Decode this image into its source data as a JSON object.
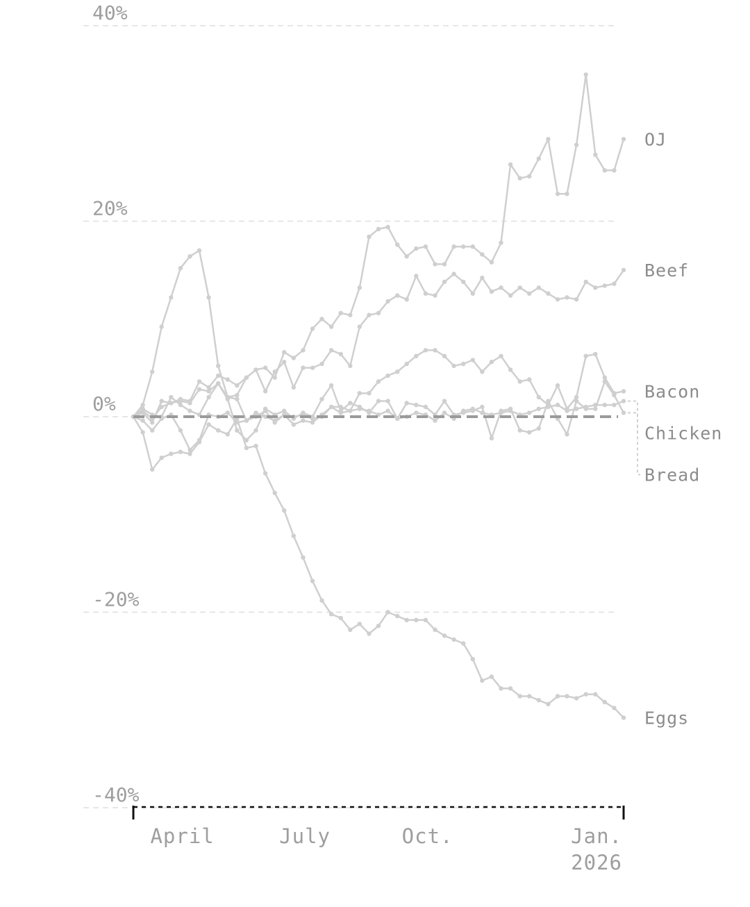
{
  "chart_data": {
    "type": "line",
    "ylim": [
      -40,
      40
    ],
    "y_ticks": [
      {
        "value": 40,
        "label": "40%"
      },
      {
        "value": 20,
        "label": "20%"
      },
      {
        "value": 0,
        "label": "0%"
      },
      {
        "value": -20,
        "label": "-20%"
      },
      {
        "value": -40,
        "label": "-40%"
      }
    ],
    "x_ticks": [
      {
        "value": 5.2,
        "label": "April"
      },
      {
        "value": 18.2,
        "label": "July"
      },
      {
        "value": 31.2,
        "label": "Oct."
      },
      {
        "value": 44.8,
        "label": "Jan.",
        "label2": "2026"
      }
    ],
    "x_count": 53,
    "grid": true,
    "zero_line": true,
    "series": [
      {
        "name": "OJ",
        "values": [
          0,
          1.2,
          4.6,
          9.2,
          12.2,
          15.2,
          16.4,
          17.0,
          12.2,
          5.2,
          2.0,
          2.2,
          4.0,
          4.8,
          5.0,
          4.0,
          6.6,
          6.0,
          6.8,
          9.0,
          10.0,
          9.2,
          10.6,
          10.4,
          13.2,
          18.4,
          19.2,
          19.4,
          17.6,
          16.4,
          17.2,
          17.4,
          15.6,
          15.6,
          17.4,
          17.4,
          17.4,
          16.6,
          15.8,
          17.8,
          25.8,
          24.4,
          24.6,
          26.4,
          28.4,
          22.8,
          22.8,
          27.8,
          35.0,
          26.8,
          25.2,
          25.2,
          28.4
        ]
      },
      {
        "name": "Beef",
        "values": [
          0,
          0.6,
          -0.2,
          1.0,
          1.4,
          1.8,
          1.6,
          3.6,
          3.0,
          4.2,
          3.8,
          3.2,
          4.0,
          4.8,
          2.6,
          4.6,
          5.6,
          3.0,
          5.0,
          5.0,
          5.4,
          6.8,
          6.4,
          5.2,
          9.2,
          10.4,
          10.6,
          11.8,
          12.4,
          12.0,
          14.4,
          12.6,
          12.4,
          13.8,
          14.6,
          13.8,
          12.6,
          14.2,
          12.8,
          13.2,
          12.4,
          13.2,
          12.6,
          13.2,
          12.6,
          12.0,
          12.2,
          12.0,
          13.8,
          13.2,
          13.4,
          13.6,
          15.0
        ]
      },
      {
        "name": "Bacon",
        "values": [
          0,
          0.4,
          -0.6,
          1.6,
          1.4,
          1.6,
          1.4,
          2.8,
          2.6,
          3.4,
          2.0,
          1.8,
          -0.4,
          0.0,
          0.6,
          -0.6,
          0.2,
          -0.8,
          -0.4,
          -0.6,
          0.2,
          1.0,
          0.4,
          0.6,
          2.4,
          2.4,
          3.6,
          4.2,
          4.6,
          5.4,
          6.2,
          6.8,
          6.8,
          6.2,
          5.2,
          5.4,
          5.8,
          4.6,
          5.6,
          6.2,
          4.8,
          3.6,
          3.8,
          2.0,
          1.2,
          3.2,
          0.8,
          2.0,
          6.2,
          6.4,
          4.0,
          2.4,
          2.6
        ]
      },
      {
        "name": "Chicken",
        "values": [
          0,
          -0.4,
          -1.4,
          -0.2,
          0.2,
          -1.4,
          -3.4,
          -2.4,
          0.2,
          0.0,
          0.4,
          -0.6,
          -0.4,
          0.4,
          0.0,
          -0.4,
          0.2,
          0.0,
          0.2,
          -0.2,
          0.0,
          1.0,
          1.0,
          0.6,
          0.8,
          0.6,
          0.2,
          0.6,
          -0.2,
          0.0,
          0.4,
          0.2,
          -0.4,
          0.4,
          -0.2,
          0.6,
          0.8,
          0.4,
          0.2,
          0.4,
          0.6,
          0.2,
          0.4,
          0.8,
          1.0,
          1.2,
          0.6,
          0.8,
          1.0,
          1.2,
          1.2,
          1.2,
          1.6
        ]
      },
      {
        "name": "Bread",
        "values": [
          0,
          0.8,
          0.2,
          0.0,
          2.0,
          1.2,
          0.6,
          0.2,
          2.0,
          3.4,
          1.8,
          -1.4,
          -2.4,
          -1.4,
          0.8,
          0.2,
          0.6,
          -0.2,
          0.4,
          0.0,
          1.8,
          3.2,
          0.6,
          1.4,
          1.0,
          0.4,
          1.6,
          1.6,
          -0.2,
          1.4,
          1.2,
          1.0,
          0.2,
          1.6,
          0.2,
          0.4,
          0.6,
          1.0,
          -2.2,
          0.6,
          0.8,
          -1.4,
          -1.6,
          -1.2,
          1.6,
          -0.2,
          -1.8,
          1.6,
          0.8,
          0.8,
          3.6,
          2.2,
          0.4
        ]
      },
      {
        "name": "Eggs",
        "values": [
          0,
          -1.6,
          -5.4,
          -4.2,
          -3.8,
          -3.6,
          -3.8,
          -2.6,
          -0.8,
          -1.4,
          -1.8,
          -0.2,
          -3.2,
          -3.0,
          -5.8,
          -7.8,
          -9.6,
          -12.2,
          -14.4,
          -16.8,
          -18.8,
          -20.2,
          -20.6,
          -21.8,
          -21.2,
          -22.2,
          -21.4,
          -20.0,
          -20.4,
          -20.8,
          -20.8,
          -20.8,
          -21.8,
          -22.4,
          -22.8,
          -23.2,
          -24.8,
          -27.0,
          -26.6,
          -27.8,
          -27.8,
          -28.6,
          -28.6,
          -29.0,
          -29.4,
          -28.6,
          -28.6,
          -28.8,
          -28.4,
          -28.4,
          -29.2,
          -29.8,
          -30.8
        ]
      }
    ]
  }
}
